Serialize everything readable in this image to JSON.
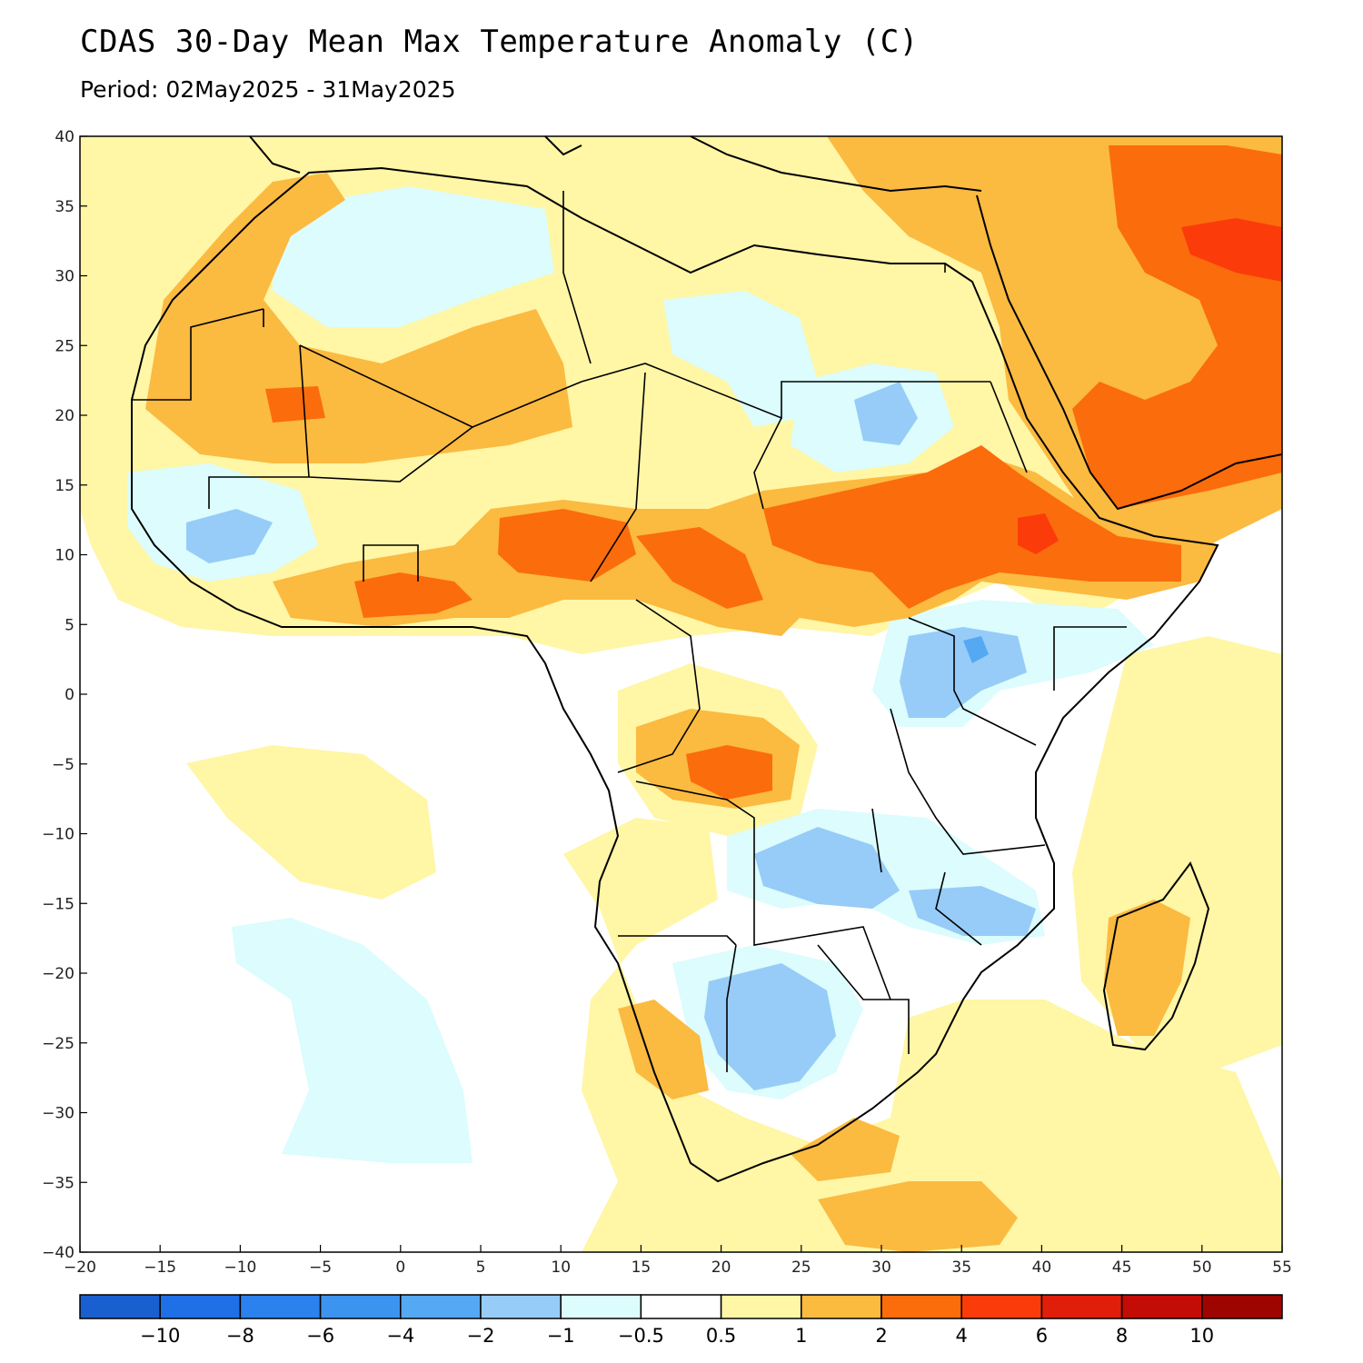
{
  "title": "CDAS 30-Day Mean Max Temperature Anomaly (C)",
  "subtitle": "Period: 02May2025 - 31May2025",
  "axes": {
    "lon_ticks": [
      "-20",
      "-15",
      "-10",
      "-5",
      "0",
      "5",
      "10",
      "15",
      "20",
      "25",
      "30",
      "35",
      "40",
      "45",
      "50",
      "55"
    ],
    "lat_ticks": [
      "40",
      "35",
      "30",
      "25",
      "20",
      "15",
      "10",
      "5",
      "0",
      "-5",
      "-10",
      "-15",
      "-20",
      "-25",
      "-30",
      "-35",
      "-40"
    ],
    "lon_range": [
      -20,
      55
    ],
    "lat_range": [
      -40,
      40
    ]
  },
  "colorbar": {
    "labels": [
      "-10",
      "-8",
      "-6",
      "-4",
      "-2",
      "-1",
      "-0.5",
      "0.5",
      "1",
      "2",
      "4",
      "6",
      "8",
      "10"
    ],
    "colors": [
      "#1a5fcf",
      "#1f6fe6",
      "#2b81ee",
      "#3c93f0",
      "#55a8f2",
      "#96ccf7",
      "#dcfcfd",
      "#ffffff",
      "#fff6a6",
      "#fbba40",
      "#fb6c0c",
      "#fb3c0a",
      "#e01e0a",
      "#c30c05",
      "#9e0500"
    ]
  },
  "anomaly_colors": {
    "land_outline": "#000000",
    "borders": "#999999"
  }
}
